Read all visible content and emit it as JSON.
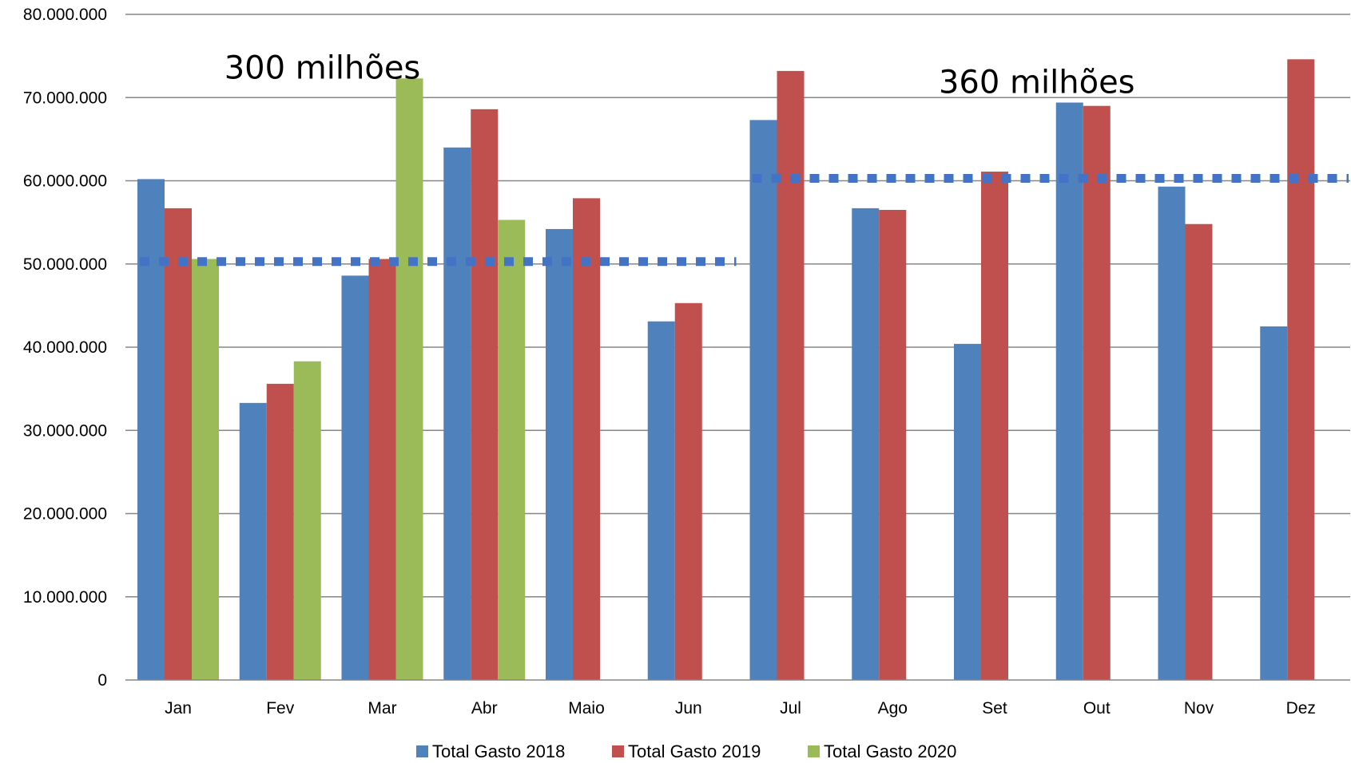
{
  "chart_data": {
    "type": "bar",
    "categories": [
      "Jan",
      "Fev",
      "Mar",
      "Abr",
      "Maio",
      "Jun",
      "Jul",
      "Ago",
      "Set",
      "Out",
      "Nov",
      "Dez"
    ],
    "series": [
      {
        "name": "Total Gasto 2018",
        "color": "#4F81BD",
        "values": [
          60200000,
          33300000,
          48600000,
          64000000,
          54200000,
          43100000,
          67300000,
          56700000,
          40400000,
          69400000,
          59300000,
          42500000
        ]
      },
      {
        "name": "Total Gasto 2019",
        "color": "#C0504D",
        "values": [
          56700000,
          35600000,
          50600000,
          68600000,
          57900000,
          45300000,
          73200000,
          56500000,
          61100000,
          69000000,
          54800000,
          74600000
        ]
      },
      {
        "name": "Total Gasto 2020",
        "color": "#9BBB59",
        "values": [
          50600000,
          38300000,
          72300000,
          55300000,
          null,
          null,
          null,
          null,
          null,
          null,
          null,
          null
        ]
      }
    ],
    "ylim": [
      0,
      80000000
    ],
    "yticks": [
      0,
      10000000,
      20000000,
      30000000,
      40000000,
      50000000,
      60000000,
      70000000,
      80000000
    ],
    "ytick_labels": [
      "0",
      "10.000.000",
      "20.000.000",
      "30.000.000",
      "40.000.000",
      "50.000.000",
      "60.000.000",
      "70.000.000",
      "80.000.000"
    ],
    "grid": true,
    "legend_position": "bottom",
    "reference_lines": [
      {
        "value": 50000000,
        "from": "Jan",
        "to": "Jun",
        "color": "#4472C4",
        "style": "dotted"
      },
      {
        "value": 60000000,
        "from": "Jul",
        "to": "Dez",
        "color": "#4472C4",
        "style": "dotted"
      }
    ],
    "annotations": [
      {
        "text": "300 milhões",
        "anchor_category": "Mar",
        "value": 74000000
      },
      {
        "text": "360 milhões",
        "anchor_category": "Out",
        "value": 72300000
      }
    ]
  }
}
